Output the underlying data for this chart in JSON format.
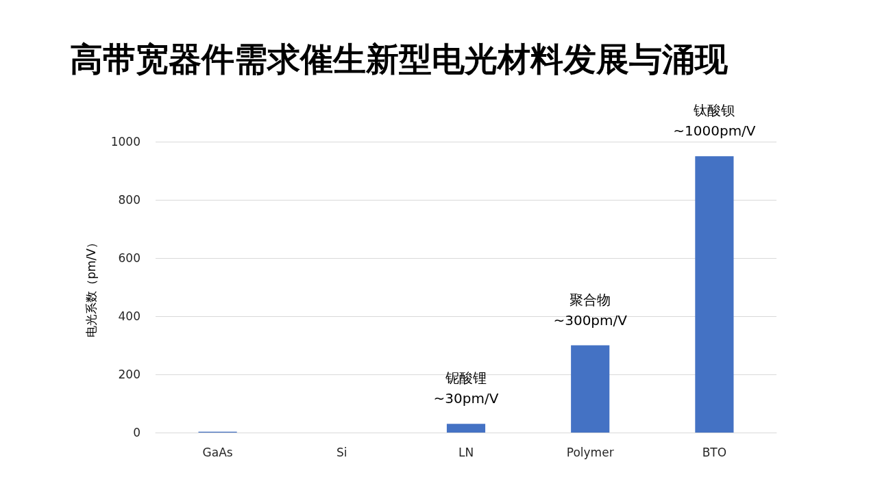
{
  "chart_data": {
    "type": "bar",
    "title": "高带宽器件需求催生新型电光材料发展与涌现",
    "ylabel": "电光系数（pm/V）",
    "categories": [
      "GaAs",
      "Si",
      "LN",
      "Polymer",
      "BTO"
    ],
    "values": [
      3,
      0,
      30,
      300,
      950
    ],
    "color": "#4472c4",
    "ylim": [
      0,
      1000
    ],
    "yticks": [
      0,
      200,
      400,
      600,
      800,
      1000
    ],
    "grid": "y",
    "annotations": [
      {
        "text": "铌酸锂\n~30pm/V",
        "x": "LN",
        "y": 30
      },
      {
        "text": "聚合物\n~300pm/V",
        "x": "Polymer",
        "y": 300
      },
      {
        "text": "钛酸钡\n~1000pm/V",
        "x": "BTO",
        "y": 950
      }
    ]
  }
}
